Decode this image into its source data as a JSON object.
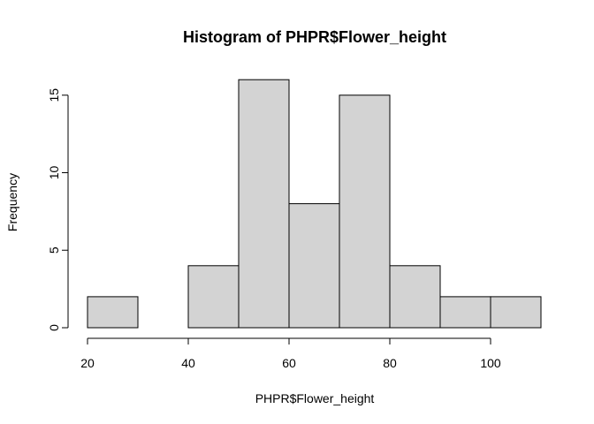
{
  "chart_data": {
    "type": "bar",
    "title": "Histogram of PHPR$Flower_height",
    "xlabel": "PHPR$Flower_height",
    "ylabel": "Frequency",
    "bins": [
      {
        "from": 20,
        "to": 30,
        "count": 2
      },
      {
        "from": 30,
        "to": 40,
        "count": 0
      },
      {
        "from": 40,
        "to": 50,
        "count": 4
      },
      {
        "from": 50,
        "to": 60,
        "count": 16
      },
      {
        "from": 60,
        "to": 70,
        "count": 8
      },
      {
        "from": 70,
        "to": 80,
        "count": 15
      },
      {
        "from": 80,
        "to": 90,
        "count": 4
      },
      {
        "from": 90,
        "to": 100,
        "count": 2
      },
      {
        "from": 100,
        "to": 110,
        "count": 2
      }
    ],
    "xticks": [
      20,
      40,
      60,
      80,
      100
    ],
    "yticks": [
      0,
      5,
      10,
      15
    ],
    "xlim": [
      20,
      110
    ],
    "ylim": [
      0,
      16
    ],
    "bar_color": "#d3d3d3",
    "grid": false
  }
}
